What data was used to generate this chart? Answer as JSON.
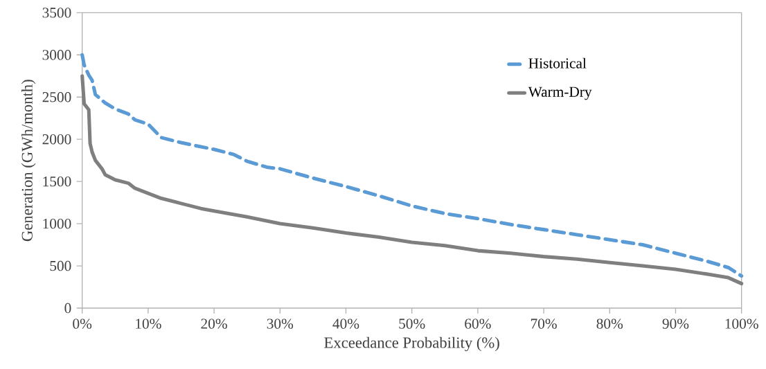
{
  "chart_data": {
    "type": "line",
    "xlabel": "Exceedance Probability (%)",
    "ylabel": "Generation (GWh/month)",
    "xlim": [
      0,
      100
    ],
    "ylim": [
      0,
      3500
    ],
    "xticks": [
      {
        "value": 0,
        "label": "0%"
      },
      {
        "value": 10,
        "label": "10%"
      },
      {
        "value": 20,
        "label": "20%"
      },
      {
        "value": 30,
        "label": "30%"
      },
      {
        "value": 40,
        "label": "40%"
      },
      {
        "value": 50,
        "label": "50%"
      },
      {
        "value": 60,
        "label": "60%"
      },
      {
        "value": 70,
        "label": "70%"
      },
      {
        "value": 80,
        "label": "80%"
      },
      {
        "value": 90,
        "label": "90%"
      },
      {
        "value": 100,
        "label": "100%"
      }
    ],
    "yticks": [
      0,
      500,
      1000,
      1500,
      2000,
      2500,
      3000,
      3500
    ],
    "grid": false,
    "legend": "top right",
    "marker": "none",
    "series": [
      {
        "name": "Historical",
        "color": "#5b9bd5",
        "line_style": "dashed",
        "x": [
          0,
          0.3,
          1,
          1.5,
          2,
          3.5,
          5,
          7,
          8,
          10,
          12,
          15,
          20,
          23,
          25,
          28,
          30,
          35,
          40,
          45,
          50,
          55,
          60,
          65,
          70,
          75,
          80,
          85,
          90,
          95,
          98,
          100
        ],
        "values": [
          3000,
          2880,
          2760,
          2700,
          2530,
          2430,
          2360,
          2300,
          2230,
          2180,
          2020,
          1960,
          1880,
          1820,
          1740,
          1670,
          1650,
          1540,
          1440,
          1330,
          1210,
          1120,
          1060,
          990,
          930,
          870,
          810,
          750,
          650,
          550,
          480,
          380
        ]
      },
      {
        "name": "Warm-Dry",
        "color": "#7f7f7f",
        "line_style": "solid",
        "x": [
          0,
          0.3,
          1,
          1.2,
          1.5,
          2,
          3,
          3.5,
          5,
          7,
          8,
          10,
          12,
          15,
          18,
          20,
          25,
          30,
          35,
          40,
          45,
          50,
          55,
          60,
          65,
          70,
          75,
          80,
          85,
          90,
          95,
          98,
          100
        ],
        "values": [
          2750,
          2420,
          2350,
          1950,
          1850,
          1750,
          1650,
          1580,
          1520,
          1480,
          1420,
          1360,
          1300,
          1240,
          1180,
          1150,
          1080,
          1000,
          950,
          890,
          840,
          780,
          740,
          680,
          650,
          610,
          580,
          540,
          500,
          460,
          400,
          360,
          290
        ]
      }
    ]
  }
}
